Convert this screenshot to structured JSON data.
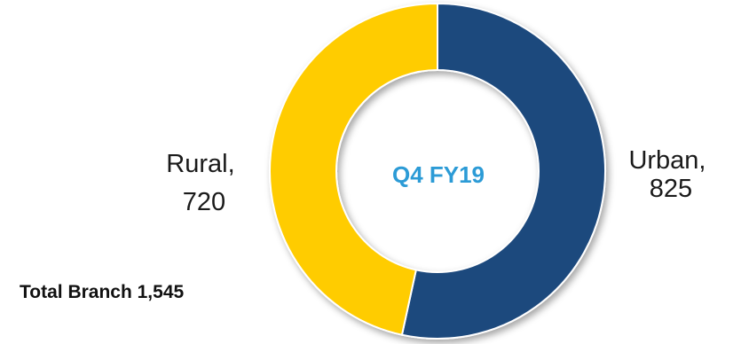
{
  "chart_data": {
    "type": "pie",
    "donut": true,
    "categories": [
      "Urban",
      "Rural"
    ],
    "values": [
      825,
      720
    ],
    "colors": [
      "#1f497d",
      "#ffcc00"
    ],
    "center_text": "Q4 FY19",
    "center_text_color": "#2c9bd6",
    "slice_labels": [
      {
        "lines": [
          "Urban,",
          "825"
        ]
      },
      {
        "lines": [
          "Rural,",
          "720"
        ]
      }
    ],
    "total_text": "Total Branch 1,545",
    "legend": "none"
  }
}
